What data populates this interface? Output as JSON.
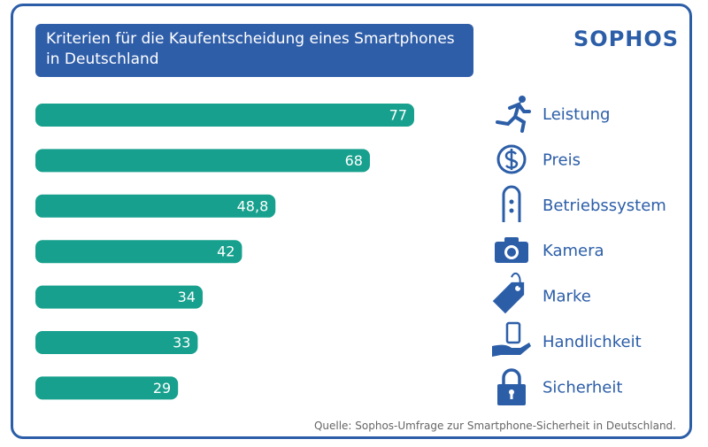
{
  "chart_data": {
    "type": "bar",
    "orientation": "horizontal",
    "title": "Kriterien für die Kaufentscheidung eines Smartphones in Deutschland",
    "brand": "SOPHOS",
    "categories": [
      "Leistung",
      "Preis",
      "Betriebssystem",
      "Kamera",
      "Marke",
      "Handlichkeit",
      "Sicherheit"
    ],
    "values": [
      77,
      68,
      48.8,
      42,
      34,
      33,
      29
    ],
    "value_labels": [
      "77",
      "68",
      "48,8",
      "42",
      "34",
      "33",
      "29"
    ],
    "color": "#17a08d",
    "source": "Quelle:  Sophos-Umfrage zur Smartphone-Sicherheit in Deutschland."
  }
}
